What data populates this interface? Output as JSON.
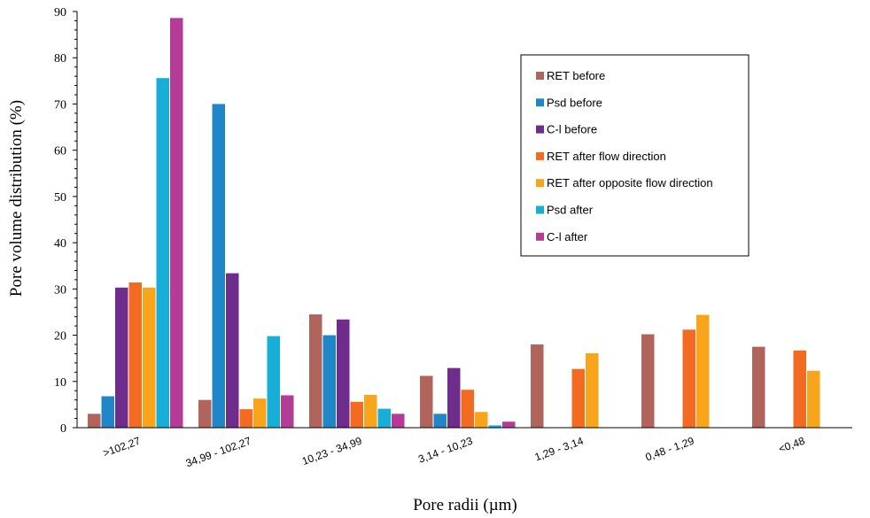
{
  "chart_data": {
    "type": "bar",
    "title": "",
    "xlabel": "Pore radii (µm)",
    "ylabel": "Pore volume distribution (%)",
    "ylim": [
      0,
      90
    ],
    "yticks": [
      0,
      10,
      20,
      30,
      40,
      50,
      60,
      70,
      80,
      90
    ],
    "grid": false,
    "legend_position": "top-right",
    "categories": [
      ">102,27",
      "34,99 - 102,27",
      "10,23 - 34,99",
      "3,14 - 10,23",
      "1,29 - 3,14",
      "0,48 - 1,29",
      "<0,48"
    ],
    "series": [
      {
        "name": "RET before",
        "color": "#b0645c",
        "values": [
          3,
          6,
          24.5,
          11.2,
          18,
          20.2,
          17.5
        ]
      },
      {
        "name": "Psd before",
        "color": "#1f86c8",
        "values": [
          6.8,
          70,
          20,
          3,
          null,
          null,
          null
        ]
      },
      {
        "name": "C-l before",
        "color": "#6e2c8c",
        "values": [
          30.3,
          33.4,
          23.4,
          12.9,
          null,
          null,
          null
        ]
      },
      {
        "name": "RET after flow direction",
        "color": "#f26b21",
        "values": [
          31.4,
          4,
          5.6,
          8.2,
          12.7,
          21.2,
          16.7
        ]
      },
      {
        "name": "RET after opposite flow direction",
        "color": "#f9a51b",
        "values": [
          30.3,
          6.3,
          7.1,
          3.4,
          16.1,
          24.4,
          12.3
        ]
      },
      {
        "name": "Psd after",
        "color": "#17aed8",
        "values": [
          75.6,
          19.8,
          4.1,
          0.5,
          null,
          null,
          null
        ]
      },
      {
        "name": "C-l after",
        "color": "#b43c96",
        "values": [
          88.6,
          7,
          3,
          1.3,
          null,
          null,
          null
        ]
      }
    ]
  }
}
